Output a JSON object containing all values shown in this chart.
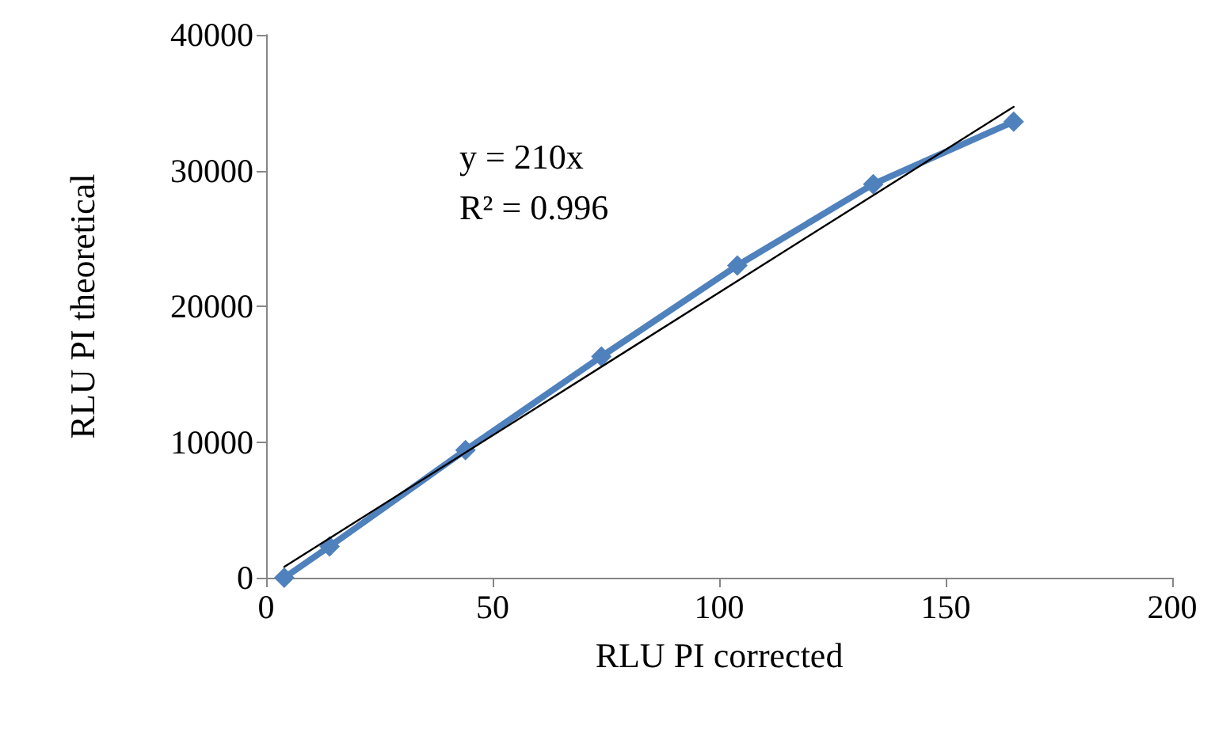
{
  "chart_data": {
    "type": "line",
    "xlabel": "RLU PI corrected",
    "ylabel": "RLU PI theoretical",
    "marker": "diamond",
    "grid": false,
    "series": [
      {
        "color": "#4f81bd",
        "x": [
          4,
          14,
          44,
          74,
          104,
          134,
          165
        ],
        "values": [
          0,
          2300,
          9400,
          16300,
          23000,
          29000,
          33600
        ]
      },
      {
        "type": "line",
        "color": "#000000",
        "marker": "none",
        "x": [
          4,
          165
        ],
        "values": [
          800,
          34700
        ]
      }
    ],
    "xlim": [
      0,
      200
    ],
    "xticks": [
      0,
      50,
      100,
      150,
      200
    ],
    "ylim": [
      0,
      40000
    ],
    "yticks": [
      0,
      10000,
      20000,
      30000,
      40000
    ],
    "annotations": [
      "y = 210x",
      "R² = 0.996"
    ]
  }
}
